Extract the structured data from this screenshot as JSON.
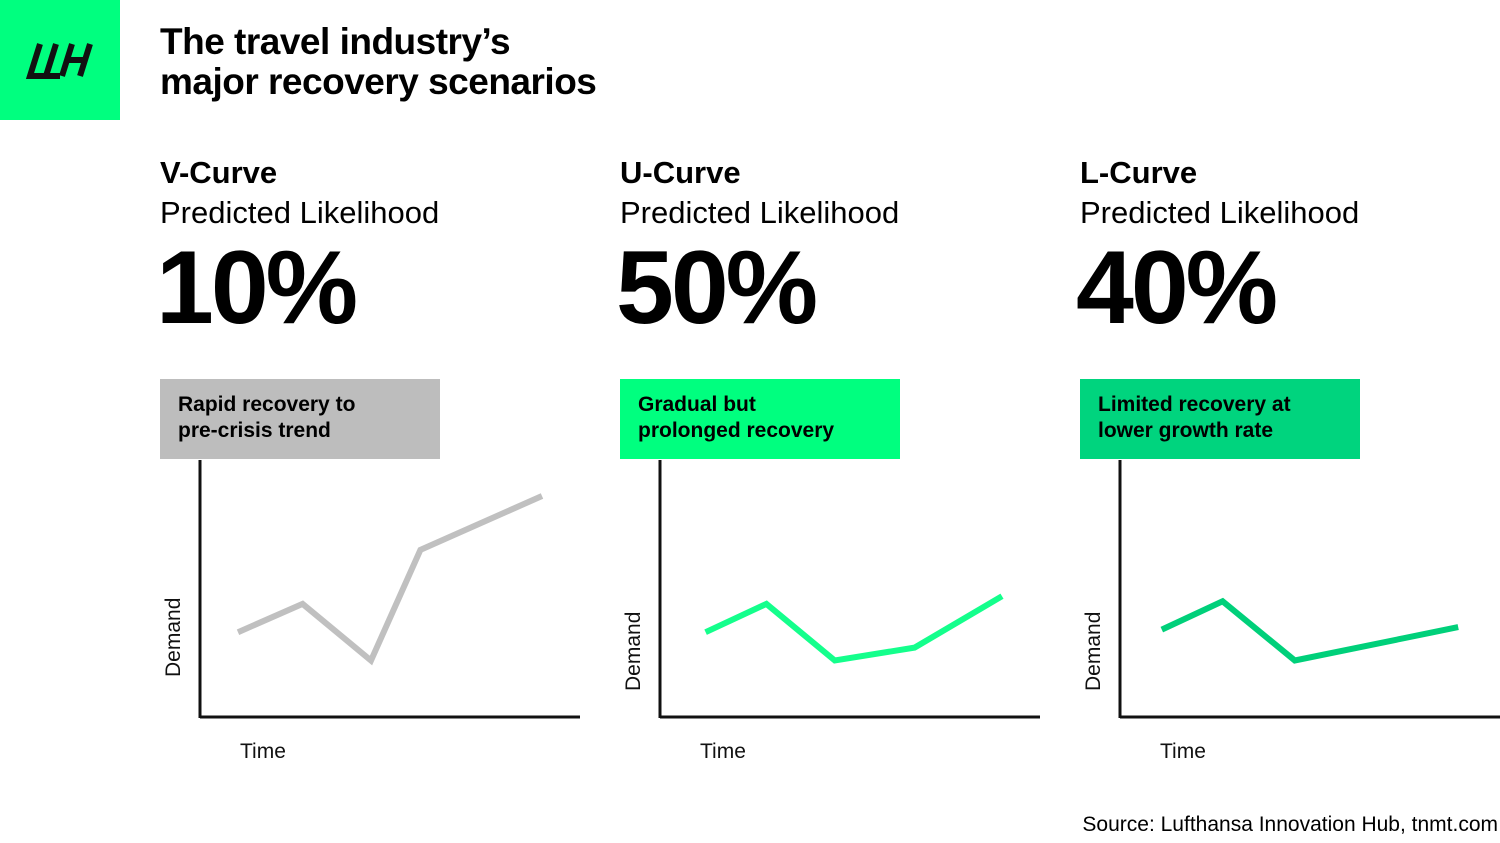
{
  "logo": {
    "brand_color": "#00ff7f",
    "text": "LH"
  },
  "title": {
    "line1": "The travel industry’s",
    "line2": "major recovery scenarios"
  },
  "chart_data": [
    {
      "type": "line",
      "name": "V-Curve",
      "subtitle": "Predicted Likelihood",
      "likelihood": "10%",
      "description": [
        "Rapid recovery to",
        "pre-crisis trend"
      ],
      "xlabel": "Time",
      "ylabel": "Demand",
      "x": [
        0.1,
        0.27,
        0.45,
        0.58,
        0.9
      ],
      "y": [
        0.33,
        0.44,
        0.22,
        0.65,
        0.86
      ],
      "xlim": [
        0,
        1
      ],
      "ylim": [
        0,
        1
      ],
      "line_color": "#c0c0c0",
      "box_color": "#bdbdbd",
      "grid": false
    },
    {
      "type": "line",
      "name": "U-Curve",
      "subtitle": "Predicted Likelihood",
      "likelihood": "50%",
      "description": [
        "Gradual but",
        "prolonged recovery"
      ],
      "xlabel": "Time",
      "ylabel": "Demand",
      "x": [
        0.12,
        0.28,
        0.46,
        0.67,
        0.9
      ],
      "y": [
        0.33,
        0.44,
        0.22,
        0.27,
        0.47
      ],
      "xlim": [
        0,
        1
      ],
      "ylim": [
        0,
        1
      ],
      "line_color": "#14ff8c",
      "box_color": "#00ff7f",
      "grid": false
    },
    {
      "type": "line",
      "name": "L-Curve",
      "subtitle": "Predicted Likelihood",
      "likelihood": "40%",
      "description": [
        "Limited recovery at",
        "lower growth rate"
      ],
      "xlabel": "Time",
      "ylabel": "Demand",
      "x": [
        0.11,
        0.27,
        0.46,
        0.89
      ],
      "y": [
        0.34,
        0.45,
        0.22,
        0.35
      ],
      "xlim": [
        0,
        1
      ],
      "ylim": [
        0,
        1
      ],
      "line_color": "#00d07a",
      "box_color": "#00d47e",
      "grid": false
    }
  ],
  "source": "Source: Lufthansa Innovation Hub, tnmt.com"
}
